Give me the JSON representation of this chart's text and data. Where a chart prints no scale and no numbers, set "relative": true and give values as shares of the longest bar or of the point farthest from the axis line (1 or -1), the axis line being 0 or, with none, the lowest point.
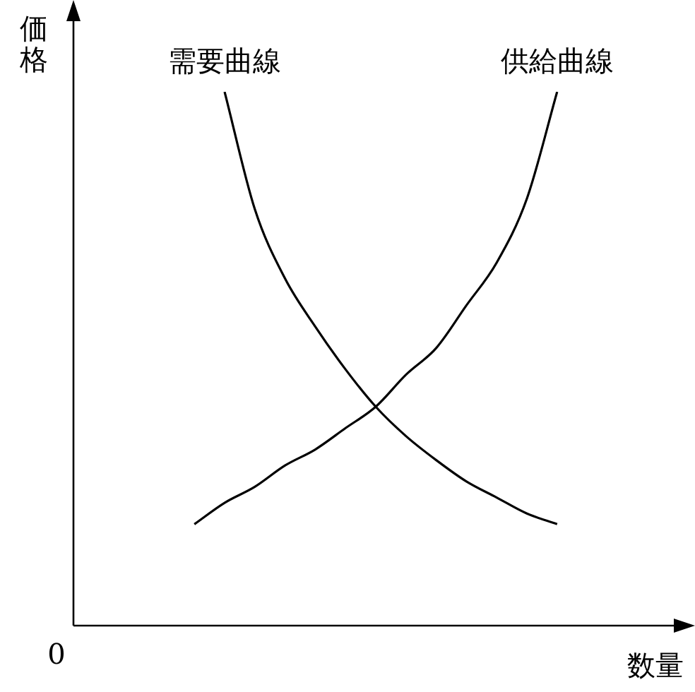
{
  "chart_data": {
    "type": "line",
    "relative": true,
    "ylabel": "価格",
    "xlabel": "数量",
    "annotations": [
      "0"
    ],
    "legend": false,
    "marker": "none",
    "line_style": "solid",
    "categories": [
      null,
      null,
      null,
      null,
      null,
      null,
      null,
      null,
      null,
      null,
      null,
      null,
      null,
      null,
      null,
      null,
      null,
      null,
      null,
      null,
      null
    ],
    "series": [
      {
        "name": "需要曲線",
        "color": "#000000",
        "values": [
          null,
          null,
          null,
          null,
          null,
          1.0,
          0.78,
          0.65,
          0.56,
          0.48,
          0.41,
          0.355,
          0.31,
          0.27,
          0.24,
          0.21,
          0.19,
          null,
          null,
          null,
          null
        ]
      },
      {
        "name": "供給曲線",
        "color": "#000000",
        "values": [
          null,
          null,
          null,
          null,
          0.19,
          0.23,
          0.26,
          0.3,
          0.33,
          0.37,
          0.41,
          0.47,
          0.52,
          0.6,
          0.68,
          0.8,
          1.0,
          null,
          null,
          null,
          null
        ]
      }
    ]
  }
}
